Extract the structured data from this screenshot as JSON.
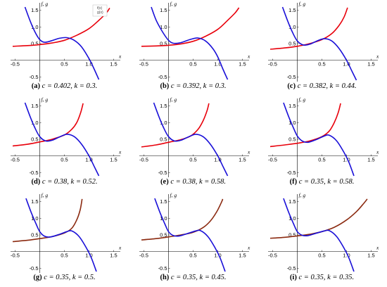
{
  "chart_data": [
    {
      "type": "line",
      "label": "(a)",
      "caption": "c = 0.402, k = 0.3.",
      "c": 0.402,
      "k": 0.3,
      "legend": [
        "f(x)",
        "g(x)"
      ],
      "xlabel": "x",
      "ylabel": "f, g",
      "xlim": [
        -0.55,
        1.55
      ],
      "ylim": [
        -0.6,
        1.6
      ],
      "xticks": [
        "-0.5",
        "0.5",
        "1.0",
        "1.5"
      ],
      "yticks": [
        "-0.5",
        "0.5",
        "1.0",
        "1.5"
      ],
      "series": [
        {
          "color": "#e8000b",
          "points": [
            [
              -0.55,
              0.42
            ],
            [
              -0.25,
              0.44
            ],
            [
              0,
              0.47
            ],
            [
              0.25,
              0.52
            ],
            [
              0.5,
              0.6
            ],
            [
              0.75,
              0.75
            ],
            [
              1.0,
              0.95
            ],
            [
              1.2,
              1.2
            ],
            [
              1.35,
              1.42
            ],
            [
              1.42,
              1.57
            ]
          ]
        },
        {
          "color": "#1a10d8",
          "points": [
            [
              -0.3,
              1.6
            ],
            [
              -0.2,
              1.2
            ],
            [
              -0.1,
              0.86
            ],
            [
              0,
              0.62
            ],
            [
              0.1,
              0.54
            ],
            [
              0.25,
              0.59
            ],
            [
              0.4,
              0.66
            ],
            [
              0.55,
              0.68
            ],
            [
              0.7,
              0.6
            ],
            [
              0.85,
              0.4
            ],
            [
              1.0,
              0.05
            ],
            [
              1.1,
              -0.25
            ],
            [
              1.2,
              -0.58
            ]
          ]
        }
      ]
    },
    {
      "type": "line",
      "label": "(b)",
      "caption": "c = 0.392, k = 0.3.",
      "c": 0.392,
      "k": 0.3,
      "xlabel": "x",
      "ylabel": "f, g",
      "xlim": [
        -0.55,
        1.55
      ],
      "ylim": [
        -0.6,
        1.6
      ],
      "xticks": [
        "-0.5",
        "0.5",
        "1.0",
        "1.5"
      ],
      "yticks": [
        "-0.5",
        "0.5",
        "1.0",
        "1.5"
      ],
      "series": [
        {
          "color": "#e8000b",
          "points": [
            [
              -0.55,
              0.42
            ],
            [
              -0.25,
              0.43
            ],
            [
              0,
              0.45
            ],
            [
              0.25,
              0.49
            ],
            [
              0.5,
              0.57
            ],
            [
              0.75,
              0.72
            ],
            [
              1.0,
              0.93
            ],
            [
              1.2,
              1.2
            ],
            [
              1.35,
              1.42
            ],
            [
              1.43,
              1.58
            ]
          ]
        },
        {
          "color": "#1a10d8",
          "points": [
            [
              -0.35,
              1.6
            ],
            [
              -0.25,
              1.2
            ],
            [
              -0.12,
              0.85
            ],
            [
              0,
              0.6
            ],
            [
              0.1,
              0.51
            ],
            [
              0.25,
              0.53
            ],
            [
              0.45,
              0.63
            ],
            [
              0.6,
              0.67
            ],
            [
              0.75,
              0.58
            ],
            [
              0.9,
              0.35
            ],
            [
              1.0,
              0.1
            ],
            [
              1.1,
              -0.25
            ],
            [
              1.2,
              -0.58
            ]
          ]
        }
      ]
    },
    {
      "type": "line",
      "label": "(c)",
      "caption": "c = 0.382, k = 0.44.",
      "c": 0.382,
      "k": 0.44,
      "xlabel": "x",
      "ylabel": "f, g",
      "xlim": [
        -0.55,
        1.55
      ],
      "ylim": [
        -0.6,
        1.6
      ],
      "xticks": [
        "-0.5",
        "0.5",
        "1.0",
        "1.5"
      ],
      "yticks": [
        "-0.5",
        "0.5",
        "1.0",
        "1.5"
      ],
      "series": [
        {
          "color": "#e8000b",
          "points": [
            [
              -0.55,
              0.33
            ],
            [
              -0.25,
              0.37
            ],
            [
              0,
              0.42
            ],
            [
              0.25,
              0.5
            ],
            [
              0.5,
              0.62
            ],
            [
              0.7,
              0.8
            ],
            [
              0.85,
              1.05
            ],
            [
              0.95,
              1.3
            ],
            [
              1.02,
              1.58
            ]
          ]
        },
        {
          "color": "#1a10d8",
          "points": [
            [
              -0.3,
              1.6
            ],
            [
              -0.2,
              1.2
            ],
            [
              -0.1,
              0.85
            ],
            [
              0,
              0.58
            ],
            [
              0.12,
              0.46
            ],
            [
              0.25,
              0.48
            ],
            [
              0.4,
              0.58
            ],
            [
              0.55,
              0.65
            ],
            [
              0.7,
              0.58
            ],
            [
              0.85,
              0.35
            ],
            [
              1.0,
              0.0
            ],
            [
              1.1,
              -0.3
            ],
            [
              1.2,
              -0.6
            ]
          ]
        }
      ]
    },
    {
      "type": "line",
      "label": "(d)",
      "caption": "c = 0.38, k = 0.52.",
      "c": 0.38,
      "k": 0.52,
      "xlabel": "x",
      "ylabel": "f, g",
      "xlim": [
        -0.55,
        1.55
      ],
      "ylim": [
        -0.6,
        1.6
      ],
      "xticks": [
        "-0.5",
        "0.5",
        "1.0",
        "1.5"
      ],
      "yticks": [
        "-0.5",
        "0.5",
        "1.0",
        "1.5"
      ],
      "series": [
        {
          "color": "#e8000b",
          "points": [
            [
              -0.55,
              0.3
            ],
            [
              -0.25,
              0.35
            ],
            [
              0,
              0.42
            ],
            [
              0.25,
              0.5
            ],
            [
              0.5,
              0.63
            ],
            [
              0.65,
              0.8
            ],
            [
              0.75,
              1.0
            ],
            [
              0.83,
              1.3
            ],
            [
              0.88,
              1.58
            ]
          ]
        },
        {
          "color": "#1a10d8",
          "points": [
            [
              -0.3,
              1.6
            ],
            [
              -0.2,
              1.2
            ],
            [
              -0.1,
              0.85
            ],
            [
              0,
              0.58
            ],
            [
              0.12,
              0.45
            ],
            [
              0.25,
              0.47
            ],
            [
              0.4,
              0.57
            ],
            [
              0.55,
              0.65
            ],
            [
              0.7,
              0.58
            ],
            [
              0.85,
              0.35
            ],
            [
              1.0,
              0.0
            ],
            [
              1.1,
              -0.3
            ],
            [
              1.2,
              -0.6
            ]
          ]
        }
      ]
    },
    {
      "type": "line",
      "label": "(e)",
      "caption": "c = 0.38, k = 0.58.",
      "c": 0.38,
      "k": 0.58,
      "xlabel": "x",
      "ylabel": "f, g",
      "xlim": [
        -0.55,
        1.55
      ],
      "ylim": [
        -0.6,
        1.6
      ],
      "xticks": [
        "-0.5",
        "0.5",
        "1.0",
        "1.5"
      ],
      "yticks": [
        "-0.5",
        "0.5",
        "1.0",
        "1.5"
      ],
      "series": [
        {
          "color": "#e8000b",
          "points": [
            [
              -0.55,
              0.27
            ],
            [
              -0.25,
              0.33
            ],
            [
              0,
              0.41
            ],
            [
              0.25,
              0.49
            ],
            [
              0.45,
              0.6
            ],
            [
              0.6,
              0.8
            ],
            [
              0.7,
              1.05
            ],
            [
              0.78,
              1.35
            ],
            [
              0.82,
              1.58
            ]
          ]
        },
        {
          "color": "#1a10d8",
          "points": [
            [
              -0.3,
              1.6
            ],
            [
              -0.2,
              1.2
            ],
            [
              -0.1,
              0.85
            ],
            [
              0,
              0.58
            ],
            [
              0.12,
              0.45
            ],
            [
              0.25,
              0.47
            ],
            [
              0.4,
              0.57
            ],
            [
              0.55,
              0.65
            ],
            [
              0.7,
              0.58
            ],
            [
              0.85,
              0.35
            ],
            [
              1.0,
              0.0
            ],
            [
              1.1,
              -0.3
            ],
            [
              1.2,
              -0.6
            ]
          ]
        }
      ]
    },
    {
      "type": "line",
      "label": "(f)",
      "caption": "c = 0.35, k = 0.58.",
      "c": 0.35,
      "k": 0.58,
      "xlabel": "x",
      "ylabel": "f, g",
      "xlim": [
        -0.55,
        1.55
      ],
      "ylim": [
        -0.6,
        1.6
      ],
      "xticks": [
        "-0.5",
        "0.5",
        "1.0",
        "1.5"
      ],
      "yticks": [
        "-0.5",
        "0.5",
        "1.0",
        "1.5"
      ],
      "series": [
        {
          "color": "#e8000b",
          "points": [
            [
              -0.55,
              0.28
            ],
            [
              -0.25,
              0.33
            ],
            [
              0,
              0.38
            ],
            [
              0.25,
              0.45
            ],
            [
              0.5,
              0.58
            ],
            [
              0.65,
              0.75
            ],
            [
              0.75,
              1.0
            ],
            [
              0.83,
              1.3
            ],
            [
              0.88,
              1.58
            ]
          ]
        },
        {
          "color": "#1a10d8",
          "points": [
            [
              -0.28,
              1.6
            ],
            [
              -0.18,
              1.2
            ],
            [
              -0.08,
              0.85
            ],
            [
              0,
              0.6
            ],
            [
              0.1,
              0.45
            ],
            [
              0.22,
              0.41
            ],
            [
              0.4,
              0.5
            ],
            [
              0.55,
              0.6
            ],
            [
              0.65,
              0.62
            ],
            [
              0.8,
              0.45
            ],
            [
              0.95,
              0.1
            ],
            [
              1.05,
              -0.2
            ],
            [
              1.15,
              -0.6
            ]
          ]
        }
      ]
    },
    {
      "type": "line",
      "label": "(g)",
      "caption": "c = 0.35, k = 0.5.",
      "c": 0.35,
      "k": 0.5,
      "xlabel": "x",
      "ylabel": "f, g",
      "xlim": [
        -0.55,
        1.55
      ],
      "ylim": [
        -0.6,
        1.6
      ],
      "xticks": [
        "-0.5",
        "0.5",
        "1.0",
        "1.5"
      ],
      "yticks": [
        "-0.5",
        "0.5",
        "1.0",
        "1.5"
      ],
      "series": [
        {
          "color": "#8b2a10",
          "points": [
            [
              -0.55,
              0.3
            ],
            [
              -0.25,
              0.34
            ],
            [
              0,
              0.39
            ],
            [
              0.25,
              0.45
            ],
            [
              0.5,
              0.56
            ],
            [
              0.65,
              0.7
            ],
            [
              0.75,
              0.95
            ],
            [
              0.82,
              1.25
            ],
            [
              0.86,
              1.58
            ]
          ]
        },
        {
          "color": "#1a10d8",
          "points": [
            [
              -0.28,
              1.6
            ],
            [
              -0.18,
              1.2
            ],
            [
              -0.08,
              0.85
            ],
            [
              0,
              0.6
            ],
            [
              0.1,
              0.46
            ],
            [
              0.22,
              0.44
            ],
            [
              0.4,
              0.52
            ],
            [
              0.55,
              0.6
            ],
            [
              0.65,
              0.62
            ],
            [
              0.8,
              0.45
            ],
            [
              0.95,
              0.1
            ],
            [
              1.05,
              -0.2
            ],
            [
              1.15,
              -0.6
            ]
          ]
        }
      ]
    },
    {
      "type": "line",
      "label": "(h)",
      "caption": "c = 0.35, k = 0.45.",
      "c": 0.35,
      "k": 0.45,
      "xlabel": "x",
      "ylabel": "f, g",
      "xlim": [
        -0.55,
        1.55
      ],
      "ylim": [
        -0.6,
        1.6
      ],
      "xticks": [
        "-0.5",
        "0.5",
        "1.0",
        "1.5"
      ],
      "yticks": [
        "-0.5",
        "0.5",
        "1.0",
        "1.5"
      ],
      "series": [
        {
          "color": "#8b2a10",
          "points": [
            [
              -0.55,
              0.35
            ],
            [
              -0.25,
              0.39
            ],
            [
              0,
              0.44
            ],
            [
              0.25,
              0.5
            ],
            [
              0.5,
              0.58
            ],
            [
              0.7,
              0.72
            ],
            [
              0.85,
              0.92
            ],
            [
              0.98,
              1.2
            ],
            [
              1.08,
              1.5
            ],
            [
              1.1,
              1.58
            ]
          ]
        },
        {
          "color": "#1a10d8",
          "points": [
            [
              -0.28,
              1.6
            ],
            [
              -0.18,
              1.2
            ],
            [
              -0.08,
              0.85
            ],
            [
              0,
              0.6
            ],
            [
              0.1,
              0.48
            ],
            [
              0.22,
              0.47
            ],
            [
              0.4,
              0.55
            ],
            [
              0.55,
              0.62
            ],
            [
              0.65,
              0.63
            ],
            [
              0.8,
              0.45
            ],
            [
              0.95,
              0.1
            ],
            [
              1.05,
              -0.2
            ],
            [
              1.15,
              -0.6
            ]
          ]
        }
      ]
    },
    {
      "type": "line",
      "label": "(i)",
      "caption": "c = 0.35, k = 0.35.",
      "c": 0.35,
      "k": 0.35,
      "xlabel": "x",
      "ylabel": "f, g",
      "xlim": [
        -0.55,
        1.55
      ],
      "ylim": [
        -0.6,
        1.6
      ],
      "xticks": [
        "-0.5",
        "0.5",
        "1.0",
        "1.5"
      ],
      "yticks": [
        "-0.5",
        "0.5",
        "1.0",
        "1.5"
      ],
      "series": [
        {
          "color": "#8b2a10",
          "points": [
            [
              -0.55,
              0.4
            ],
            [
              -0.25,
              0.43
            ],
            [
              0,
              0.47
            ],
            [
              0.25,
              0.52
            ],
            [
              0.5,
              0.6
            ],
            [
              0.75,
              0.73
            ],
            [
              1.0,
              0.95
            ],
            [
              1.2,
              1.2
            ],
            [
              1.35,
              1.45
            ],
            [
              1.42,
              1.58
            ]
          ]
        },
        {
          "color": "#1a10d8",
          "points": [
            [
              -0.28,
              1.6
            ],
            [
              -0.18,
              1.2
            ],
            [
              -0.08,
              0.85
            ],
            [
              0,
              0.6
            ],
            [
              0.1,
              0.49
            ],
            [
              0.22,
              0.48
            ],
            [
              0.4,
              0.56
            ],
            [
              0.55,
              0.62
            ],
            [
              0.65,
              0.63
            ],
            [
              0.8,
              0.45
            ],
            [
              0.95,
              0.1
            ],
            [
              1.05,
              -0.2
            ],
            [
              1.15,
              -0.6
            ]
          ]
        }
      ]
    }
  ]
}
